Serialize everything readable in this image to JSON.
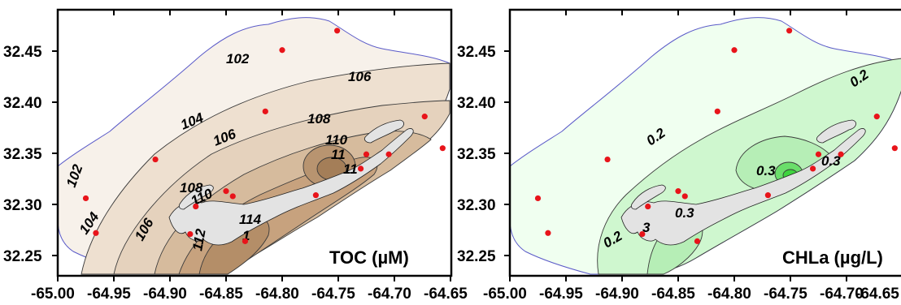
{
  "colors": {
    "toc_base": "#f7f1ea",
    "toc_mid": "#e2cdb4",
    "toc_dark": "#b6916b",
    "chla_base": "#f0fff0",
    "chla_mid": "#c8f5c8",
    "chla_high": "#66dd66",
    "station": "#e8141a",
    "outline": "#5a5ac8",
    "land": "#e3e3e3"
  },
  "axes": {
    "x_ticks": [
      "-65.00",
      "-64.95",
      "-64.90",
      "-64.85",
      "-64.80",
      "-64.75",
      "-64.70",
      "-64.65"
    ],
    "y_ticks": [
      "32.45",
      "32.40",
      "32.35",
      "32.30",
      "32.25"
    ]
  },
  "panels": [
    {
      "label": "TOC (µM)",
      "contour_labels": [
        "102",
        "106",
        "104",
        "106",
        "108",
        "110",
        "11",
        "11",
        "102",
        "108",
        "110",
        "104",
        "114",
        "106",
        "112",
        "1"
      ]
    },
    {
      "label": "CHLa (µg/L)",
      "contour_labels": [
        "0.2",
        "0.2",
        "0.3",
        "0.3",
        "0.3",
        "0.2",
        "3"
      ]
    }
  ],
  "stations": [
    {
      "lon": -64.751,
      "lat": 32.47
    },
    {
      "lon": -64.8,
      "lat": 32.451
    },
    {
      "lon": -64.815,
      "lat": 32.391
    },
    {
      "lon": -64.673,
      "lat": 32.386
    },
    {
      "lon": -64.913,
      "lat": 32.344
    },
    {
      "lon": -64.657,
      "lat": 32.355
    },
    {
      "lon": -64.725,
      "lat": 32.349
    },
    {
      "lon": -64.705,
      "lat": 32.349
    },
    {
      "lon": -64.73,
      "lat": 32.335
    },
    {
      "lon": -64.975,
      "lat": 32.306
    },
    {
      "lon": -64.85,
      "lat": 32.313
    },
    {
      "lon": -64.844,
      "lat": 32.308
    },
    {
      "lon": -64.77,
      "lat": 32.309
    },
    {
      "lon": -64.877,
      "lat": 32.298
    },
    {
      "lon": -64.966,
      "lat": 32.272
    },
    {
      "lon": -64.882,
      "lat": 32.271
    },
    {
      "lon": -64.833,
      "lat": 32.264
    }
  ]
}
